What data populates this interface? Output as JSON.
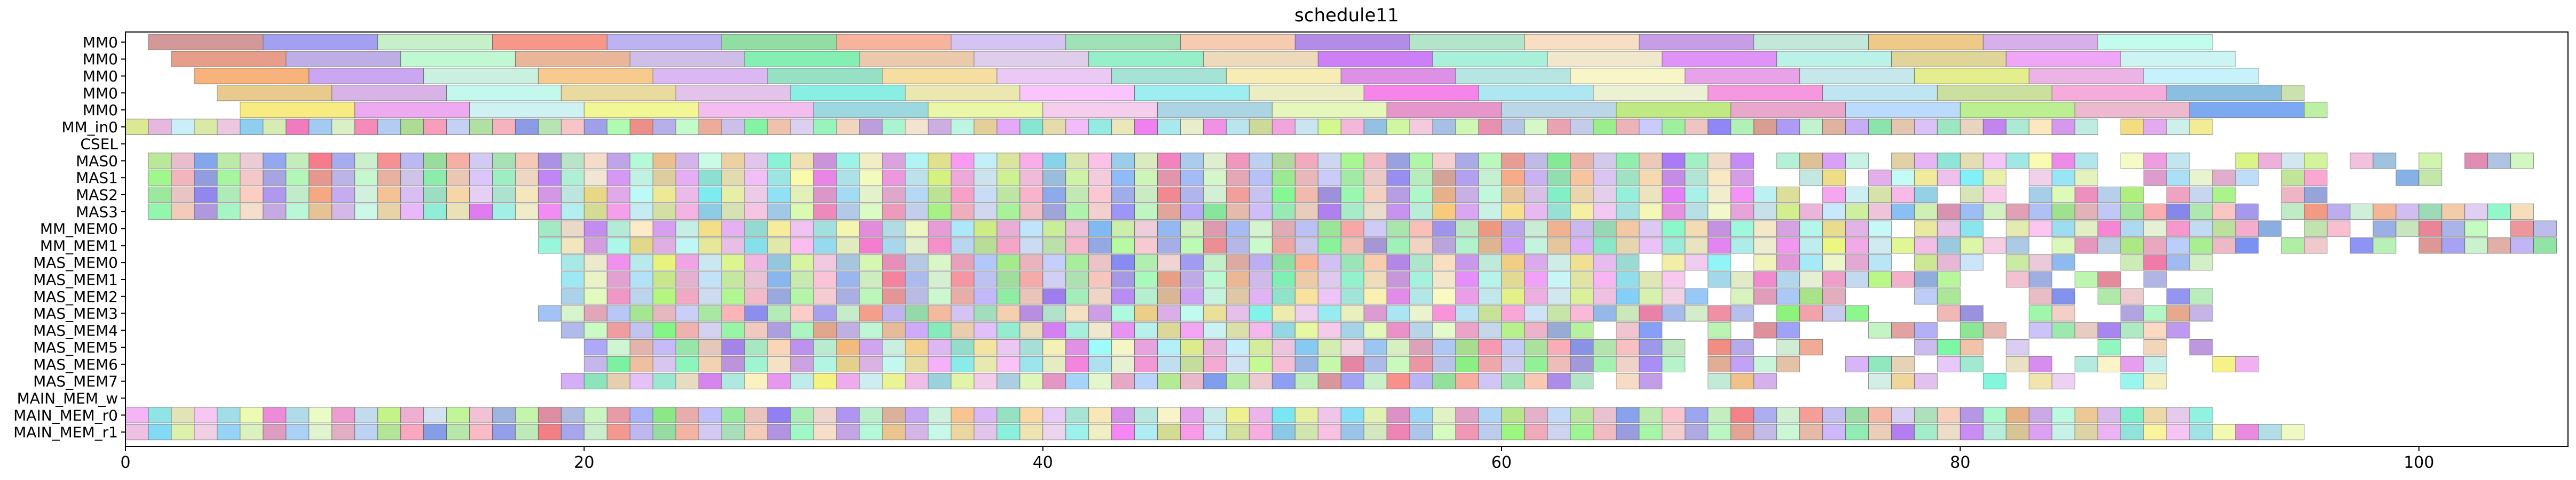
{
  "chart_data": {
    "type": "gantt",
    "title": "schedule11",
    "xlabel": "",
    "ylabel": "",
    "xlim": [
      0,
      106.5
    ],
    "grid": false,
    "x_ticks": [
      0,
      20,
      40,
      60,
      80,
      100
    ],
    "rows": [
      "MM0",
      "MM0",
      "MM0",
      "MM0",
      "MM0",
      "MM_in0",
      "CSEL",
      "MAS0",
      "MAS1",
      "MAS2",
      "MAS3",
      "MM_MEM0",
      "MM_MEM1",
      "MAS_MEM0",
      "MAS_MEM1",
      "MAS_MEM2",
      "MAS_MEM3",
      "MAS_MEM4",
      "MAS_MEM5",
      "MAS_MEM6",
      "MAS_MEM7",
      "MAIN_MEM_w",
      "MAIN_MEM_r0",
      "MAIN_MEM_r1"
    ],
    "lanes": [
      {
        "spans": [
          [
            1,
            91
          ]
        ],
        "unit": 5
      },
      {
        "spans": [
          [
            2,
            92
          ]
        ],
        "unit": 5
      },
      {
        "spans": [
          [
            3,
            93
          ]
        ],
        "unit": 5
      },
      {
        "spans": [
          [
            4,
            95
          ]
        ],
        "unit": 5
      },
      {
        "spans": [
          [
            5,
            96
          ]
        ],
        "unit": 5
      },
      {
        "spans": [
          [
            0,
            86
          ],
          [
            87,
            90
          ],
          [
            90,
            91
          ]
        ],
        "unit": 1
      },
      {
        "spans": [],
        "unit": 1
      },
      {
        "spans": [
          [
            1,
            71
          ],
          [
            72,
            76
          ],
          [
            77,
            86
          ],
          [
            87,
            89
          ],
          [
            89,
            90
          ],
          [
            92,
            96
          ],
          [
            97,
            99
          ],
          [
            100,
            101
          ],
          [
            102,
            103
          ],
          [
            103,
            104
          ],
          [
            104,
            105
          ]
        ],
        "unit": 1
      },
      {
        "spans": [
          [
            1,
            71
          ],
          [
            73,
            75
          ],
          [
            76,
            82
          ],
          [
            83,
            86
          ],
          [
            88,
            90
          ],
          [
            90,
            93
          ],
          [
            94,
            95
          ],
          [
            95,
            96
          ],
          [
            99,
            101
          ]
        ],
        "unit": 1
      },
      {
        "spans": [
          [
            1,
            73
          ],
          [
            74,
            79
          ],
          [
            80,
            82
          ],
          [
            83,
            85
          ],
          [
            85,
            88
          ],
          [
            89,
            92
          ],
          [
            94,
            96
          ]
        ],
        "unit": 1
      },
      {
        "spans": [
          [
            1,
            93
          ],
          [
            94,
            97
          ],
          [
            97,
            99
          ],
          [
            99,
            101
          ],
          [
            101,
            103
          ],
          [
            103,
            105
          ]
        ],
        "unit": 1
      },
      {
        "spans": [
          [
            18,
            19
          ],
          [
            19,
            77
          ],
          [
            78,
            81
          ],
          [
            82,
            83
          ],
          [
            83,
            94
          ],
          [
            95,
            97
          ],
          [
            98,
            103
          ],
          [
            104,
            106
          ]
        ],
        "unit": 1
      },
      {
        "spans": [
          [
            18,
            83
          ],
          [
            84,
            85
          ],
          [
            85,
            93
          ],
          [
            94,
            96
          ],
          [
            97,
            99
          ],
          [
            100,
            102
          ],
          [
            102,
            106
          ]
        ],
        "unit": 1
      },
      {
        "spans": [
          [
            19,
            66
          ],
          [
            67,
            69
          ],
          [
            69,
            70
          ],
          [
            71,
            72
          ],
          [
            72,
            77
          ],
          [
            78,
            81
          ],
          [
            82,
            85
          ],
          [
            87,
            91
          ]
        ],
        "unit": 1
      },
      {
        "spans": [
          [
            19,
            22
          ],
          [
            22,
            68
          ],
          [
            69,
            80
          ],
          [
            82,
            84
          ],
          [
            85,
            87
          ],
          [
            88,
            89
          ]
        ],
        "unit": 1
      },
      {
        "spans": [
          [
            19,
            69
          ],
          [
            70,
            72
          ],
          [
            72,
            73
          ],
          [
            73,
            75
          ],
          [
            78,
            80
          ],
          [
            83,
            85
          ],
          [
            86,
            88
          ],
          [
            89,
            91
          ]
        ],
        "unit": 1
      },
      {
        "spans": [
          [
            18,
            19
          ],
          [
            19,
            71
          ],
          [
            72,
            74
          ],
          [
            74,
            76
          ],
          [
            79,
            81
          ],
          [
            83,
            85
          ],
          [
            87,
            91
          ]
        ],
        "unit": 1
      },
      {
        "spans": [
          [
            19,
            64
          ],
          [
            65,
            67
          ],
          [
            69,
            70
          ],
          [
            71,
            73
          ],
          [
            76,
            77
          ],
          [
            77,
            79
          ],
          [
            80,
            82
          ],
          [
            83,
            88
          ],
          [
            88,
            90
          ]
        ],
        "unit": 1
      },
      {
        "spans": [
          [
            20,
            22
          ],
          [
            22,
            68
          ],
          [
            69,
            71
          ],
          [
            72,
            74
          ],
          [
            78,
            81
          ],
          [
            82,
            83
          ],
          [
            86,
            87
          ],
          [
            88,
            89
          ],
          [
            90,
            91
          ]
        ],
        "unit": 1
      },
      {
        "spans": [
          [
            20,
            22
          ],
          [
            22,
            66
          ],
          [
            66,
            68
          ],
          [
            69,
            73
          ],
          [
            75,
            78
          ],
          [
            79,
            81
          ],
          [
            82,
            84
          ],
          [
            85,
            89
          ],
          [
            91,
            93
          ]
        ],
        "unit": 1
      },
      {
        "spans": [
          [
            19,
            64
          ],
          [
            65,
            67
          ],
          [
            69,
            72
          ],
          [
            76,
            79
          ],
          [
            81,
            82
          ],
          [
            83,
            85
          ],
          [
            87,
            89
          ]
        ],
        "unit": 1
      },
      {
        "spans": [],
        "unit": 1
      },
      {
        "spans": [
          [
            0,
            91
          ]
        ],
        "unit": 1
      },
      {
        "spans": [
          [
            0,
            95
          ]
        ],
        "unit": 1
      }
    ]
  }
}
